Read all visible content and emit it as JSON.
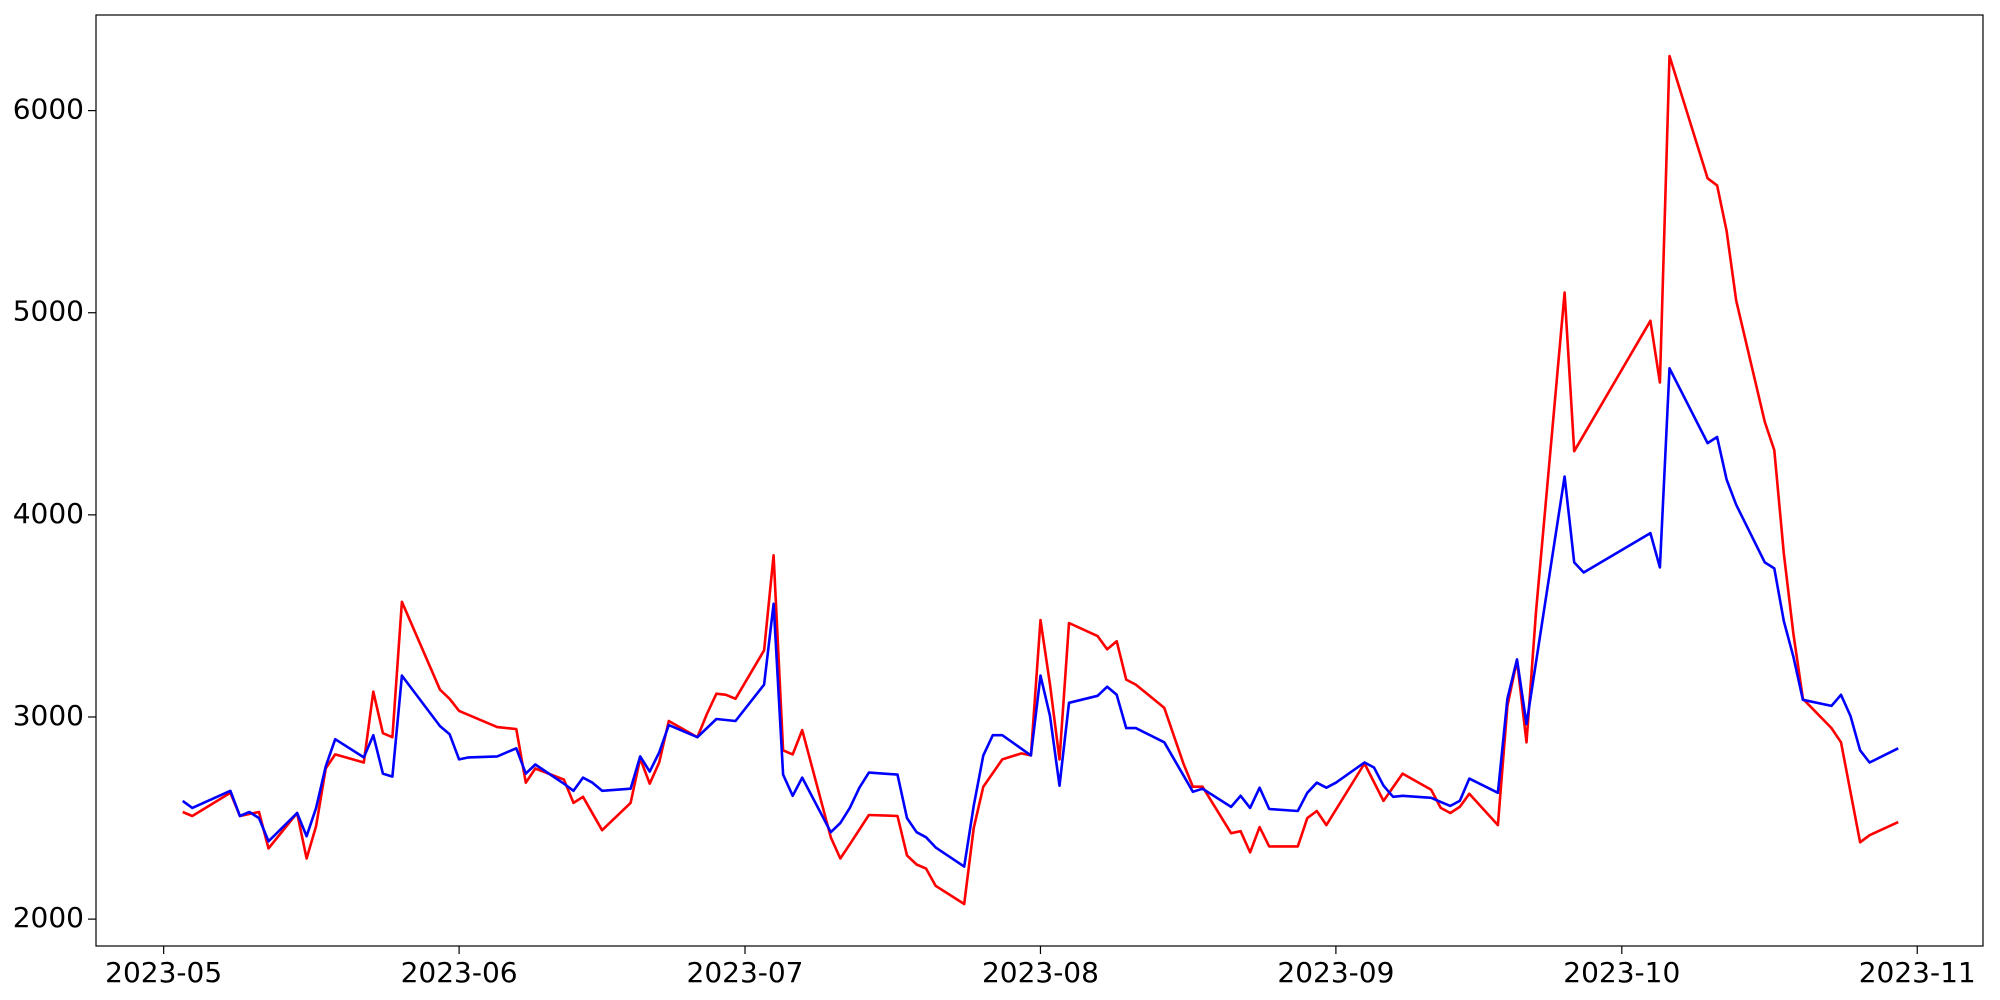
{
  "chart_data": {
    "type": "line",
    "xlim": [
      -7.1,
      190.9
    ],
    "xticks": [
      {
        "value": 0,
        "label": "2023-05"
      },
      {
        "value": 31,
        "label": "2023-06"
      },
      {
        "value": 61,
        "label": "2023-07"
      },
      {
        "value": 92,
        "label": "2023-08"
      },
      {
        "value": 123,
        "label": "2023-09"
      },
      {
        "value": 153,
        "label": "2023-10"
      },
      {
        "value": 184,
        "label": "2023-11"
      }
    ],
    "ylim": [
      1867,
      6473
    ],
    "yticks": [
      2000,
      3000,
      4000,
      5000,
      6000
    ],
    "series": [
      {
        "color": "#ff0000",
        "x": [
          2,
          3,
          7,
          8,
          10,
          11,
          14,
          15,
          16,
          17,
          18,
          21,
          22,
          23,
          24,
          25,
          29,
          30,
          31,
          35,
          37,
          38,
          39,
          42,
          43,
          44,
          46,
          49,
          50,
          51,
          52,
          53,
          56,
          57,
          58,
          59,
          60,
          63,
          64,
          65,
          66,
          67,
          70,
          71,
          72,
          74,
          77,
          78,
          79,
          80,
          81,
          84,
          85,
          86,
          88,
          90,
          91,
          92,
          93,
          94,
          95,
          98,
          99,
          100,
          101,
          102,
          105,
          107,
          108,
          109,
          112,
          113,
          114,
          115,
          116,
          119,
          120,
          121,
          122,
          126,
          128,
          130,
          133,
          134,
          135,
          136,
          137,
          140,
          141,
          142,
          143,
          144,
          147,
          148,
          156,
          157,
          158,
          162,
          163,
          164,
          165,
          168,
          169,
          170,
          171,
          172,
          175,
          176,
          178,
          179,
          182
        ],
        "values": [
          2530,
          2510,
          2625,
          2510,
          2530,
          2350,
          2525,
          2300,
          2460,
          2745,
          2815,
          2775,
          3125,
          2920,
          2900,
          3570,
          3135,
          3090,
          3030,
          2950,
          2940,
          2675,
          2745,
          2690,
          2575,
          2605,
          2440,
          2575,
          2795,
          2670,
          2775,
          2980,
          2900,
          3015,
          3115,
          3110,
          3090,
          3330,
          3800,
          2835,
          2815,
          2935,
          2405,
          2300,
          2370,
          2515,
          2510,
          2315,
          2270,
          2250,
          2165,
          2075,
          2450,
          2655,
          2790,
          2820,
          2810,
          3480,
          3160,
          2790,
          3465,
          3400,
          3335,
          3375,
          3185,
          3160,
          3045,
          2770,
          2655,
          2655,
          2425,
          2435,
          2330,
          2455,
          2360,
          2360,
          2500,
          2535,
          2465,
          2770,
          2585,
          2720,
          2640,
          2550,
          2525,
          2555,
          2620,
          2465,
          3055,
          3280,
          2875,
          3520,
          5100,
          4315,
          4960,
          4655,
          6270,
          5665,
          5630,
          5405,
          5060,
          4460,
          4320,
          3810,
          3415,
          3090,
          2945,
          2875,
          2380,
          2415,
          2480
        ]
      },
      {
        "color": "#0000ff",
        "x": [
          2,
          3,
          7,
          8,
          9,
          10,
          11,
          14,
          15,
          16,
          17,
          18,
          21,
          22,
          23,
          24,
          25,
          29,
          30,
          31,
          32,
          35,
          37,
          38,
          39,
          42,
          43,
          44,
          45,
          46,
          49,
          50,
          51,
          52,
          53,
          56,
          58,
          60,
          63,
          64,
          65,
          66,
          67,
          70,
          71,
          72,
          73,
          74,
          77,
          78,
          79,
          80,
          81,
          84,
          85,
          86,
          87,
          88,
          91,
          92,
          93,
          94,
          95,
          98,
          99,
          100,
          101,
          102,
          105,
          108,
          109,
          112,
          113,
          114,
          115,
          116,
          119,
          120,
          121,
          122,
          123,
          126,
          127,
          128,
          129,
          130,
          133,
          134,
          135,
          136,
          137,
          140,
          141,
          142,
          143,
          147,
          148,
          149,
          156,
          157,
          158,
          162,
          163,
          164,
          165,
          168,
          169,
          170,
          171,
          172,
          175,
          176,
          177,
          178,
          179,
          182
        ],
        "values": [
          2585,
          2550,
          2635,
          2510,
          2530,
          2500,
          2385,
          2525,
          2410,
          2550,
          2755,
          2890,
          2800,
          2910,
          2720,
          2705,
          3205,
          2955,
          2915,
          2790,
          2800,
          2805,
          2845,
          2720,
          2765,
          2670,
          2635,
          2700,
          2675,
          2635,
          2645,
          2805,
          2730,
          2825,
          2960,
          2900,
          2990,
          2980,
          3160,
          3560,
          2715,
          2610,
          2700,
          2430,
          2475,
          2550,
          2650,
          2725,
          2715,
          2500,
          2430,
          2405,
          2355,
          2260,
          2560,
          2810,
          2910,
          2910,
          2810,
          3205,
          3005,
          2660,
          3070,
          3105,
          3150,
          3110,
          2945,
          2945,
          2875,
          2630,
          2645,
          2555,
          2610,
          2550,
          2650,
          2545,
          2535,
          2625,
          2675,
          2650,
          2675,
          2775,
          2750,
          2660,
          2605,
          2610,
          2600,
          2580,
          2560,
          2585,
          2695,
          2625,
          3090,
          3285,
          2965,
          4190,
          3765,
          3715,
          3910,
          3740,
          4725,
          4355,
          4385,
          4175,
          4050,
          3765,
          3735,
          3475,
          3300,
          3085,
          3055,
          3110,
          3005,
          2835,
          2775,
          2845
        ]
      }
    ]
  }
}
